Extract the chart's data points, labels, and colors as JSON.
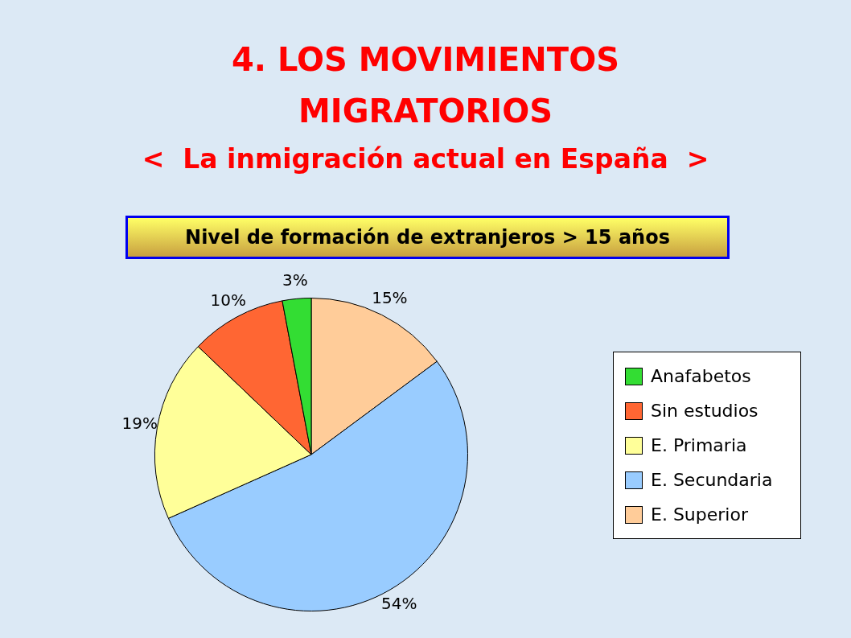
{
  "chart_data": {
    "type": "pie",
    "title": "4.  LOS MOVIMIENTOS MIGRATORIOS",
    "subtitle": "<  La inmigración actual en España  >",
    "annotations": [
      "Nivel de formación de extranjeros > 15 años"
    ],
    "categories": [
      "Anafabetos",
      "Sin estudios",
      "E. Primaria",
      "E. Secundaria",
      "E. Superior"
    ],
    "values": [
      3,
      10,
      19,
      54,
      15
    ],
    "value_labels": [
      "3%",
      "10%",
      "19%",
      "54%",
      "15%"
    ],
    "colors": [
      "#33dd33",
      "#ff6633",
      "#ffff99",
      "#99ccff",
      "#ffcc99"
    ],
    "legend": "right"
  }
}
